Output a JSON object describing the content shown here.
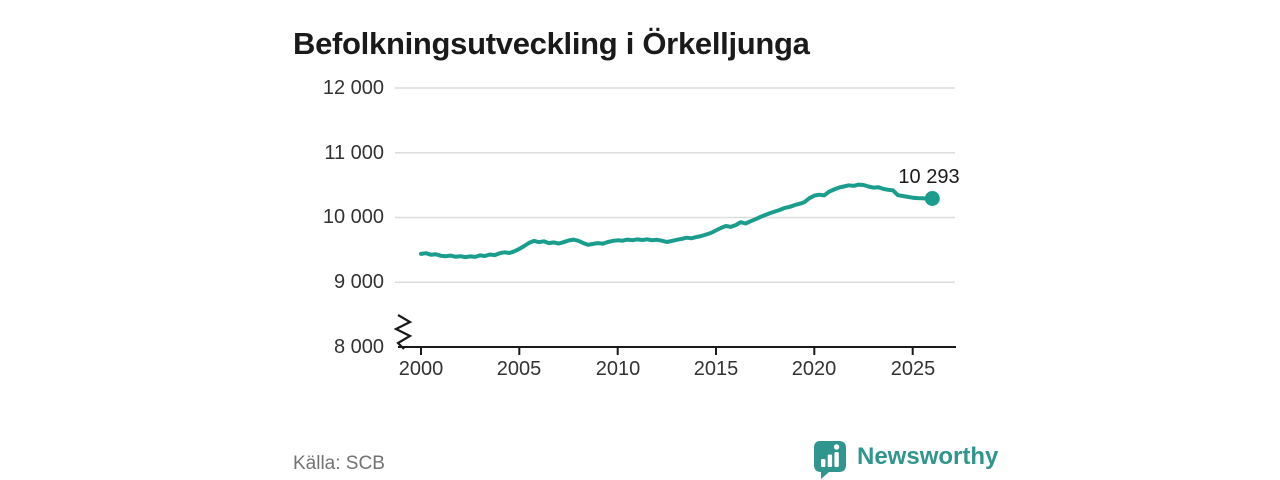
{
  "header": {
    "title": "Befolkningsutveckling i Örkelljunga"
  },
  "footer": {
    "source": "Källa: SCB",
    "brand": "Newsworthy"
  },
  "colors": {
    "line": "#1a9d8d",
    "marker": "#1a9d8d",
    "brand_teal": "#2f958d",
    "grid": "#dcdcdc",
    "axis": "#1a1a1a",
    "title_text": "#1a1a1a",
    "tick_text": "#333333",
    "source_text": "#737373"
  },
  "chart_data": {
    "type": "line",
    "title": "Befolkningsutveckling i Örkelljunga",
    "xlabel": "",
    "ylabel": "",
    "xlim": [
      2000,
      2026
    ],
    "ylim": [
      8000,
      12000
    ],
    "grid": "horizontal",
    "axis_break": true,
    "legend": "none",
    "yticks": [
      12000,
      11000,
      10000,
      9000,
      8000
    ],
    "ytick_labels": [
      "12 000",
      "11 000",
      "10 000",
      "9 000",
      "8 000"
    ],
    "xticks": [
      2000,
      2005,
      2010,
      2015,
      2020,
      2025
    ],
    "xtick_labels": [
      "2000",
      "2005",
      "2010",
      "2015",
      "2020",
      "2025"
    ],
    "end_label": "10 293",
    "end_value": 10293,
    "x": [
      2000.0,
      2000.25,
      2000.5,
      2000.75,
      2001.0,
      2001.25,
      2001.5,
      2001.75,
      2002.0,
      2002.25,
      2002.5,
      2002.75,
      2003.0,
      2003.25,
      2003.5,
      2003.75,
      2004.0,
      2004.25,
      2004.5,
      2004.75,
      2005.0,
      2005.25,
      2005.5,
      2005.75,
      2006.0,
      2006.25,
      2006.5,
      2006.75,
      2007.0,
      2007.25,
      2007.5,
      2007.75,
      2008.0,
      2008.25,
      2008.5,
      2008.75,
      2009.0,
      2009.25,
      2009.5,
      2009.75,
      2010.0,
      2010.25,
      2010.5,
      2010.75,
      2011.0,
      2011.25,
      2011.5,
      2011.75,
      2012.0,
      2012.25,
      2012.5,
      2012.75,
      2013.0,
      2013.25,
      2013.5,
      2013.75,
      2014.0,
      2014.25,
      2014.5,
      2014.75,
      2015.0,
      2015.25,
      2015.5,
      2015.75,
      2016.0,
      2016.25,
      2016.5,
      2016.75,
      2017.0,
      2017.25,
      2017.5,
      2017.75,
      2018.0,
      2018.25,
      2018.5,
      2018.75,
      2019.0,
      2019.25,
      2019.5,
      2019.75,
      2020.0,
      2020.25,
      2020.5,
      2020.75,
      2021.0,
      2021.25,
      2021.5,
      2021.75,
      2022.0,
      2022.25,
      2022.5,
      2022.75,
      2023.0,
      2023.25,
      2023.5,
      2023.75,
      2024.0,
      2024.25,
      2024.5,
      2024.75,
      2025.0,
      2025.25,
      2025.5,
      2025.75,
      2026.0
    ],
    "values": [
      9438,
      9448,
      9425,
      9432,
      9410,
      9402,
      9412,
      9395,
      9402,
      9388,
      9400,
      9392,
      9415,
      9405,
      9428,
      9420,
      9448,
      9462,
      9452,
      9478,
      9515,
      9560,
      9610,
      9638,
      9618,
      9632,
      9605,
      9615,
      9598,
      9618,
      9645,
      9658,
      9640,
      9605,
      9578,
      9592,
      9605,
      9595,
      9622,
      9638,
      9648,
      9642,
      9658,
      9650,
      9662,
      9652,
      9663,
      9648,
      9655,
      9642,
      9622,
      9638,
      9655,
      9670,
      9688,
      9678,
      9698,
      9715,
      9738,
      9762,
      9800,
      9838,
      9868,
      9855,
      9882,
      9928,
      9908,
      9942,
      9972,
      10008,
      10038,
      10068,
      10092,
      10118,
      10148,
      10165,
      10192,
      10212,
      10238,
      10298,
      10338,
      10352,
      10342,
      10398,
      10432,
      10462,
      10478,
      10498,
      10488,
      10508,
      10502,
      10478,
      10462,
      10468,
      10442,
      10428,
      10418,
      10345,
      10332,
      10318,
      10306,
      10300,
      10297,
      10291,
      10293
    ]
  }
}
